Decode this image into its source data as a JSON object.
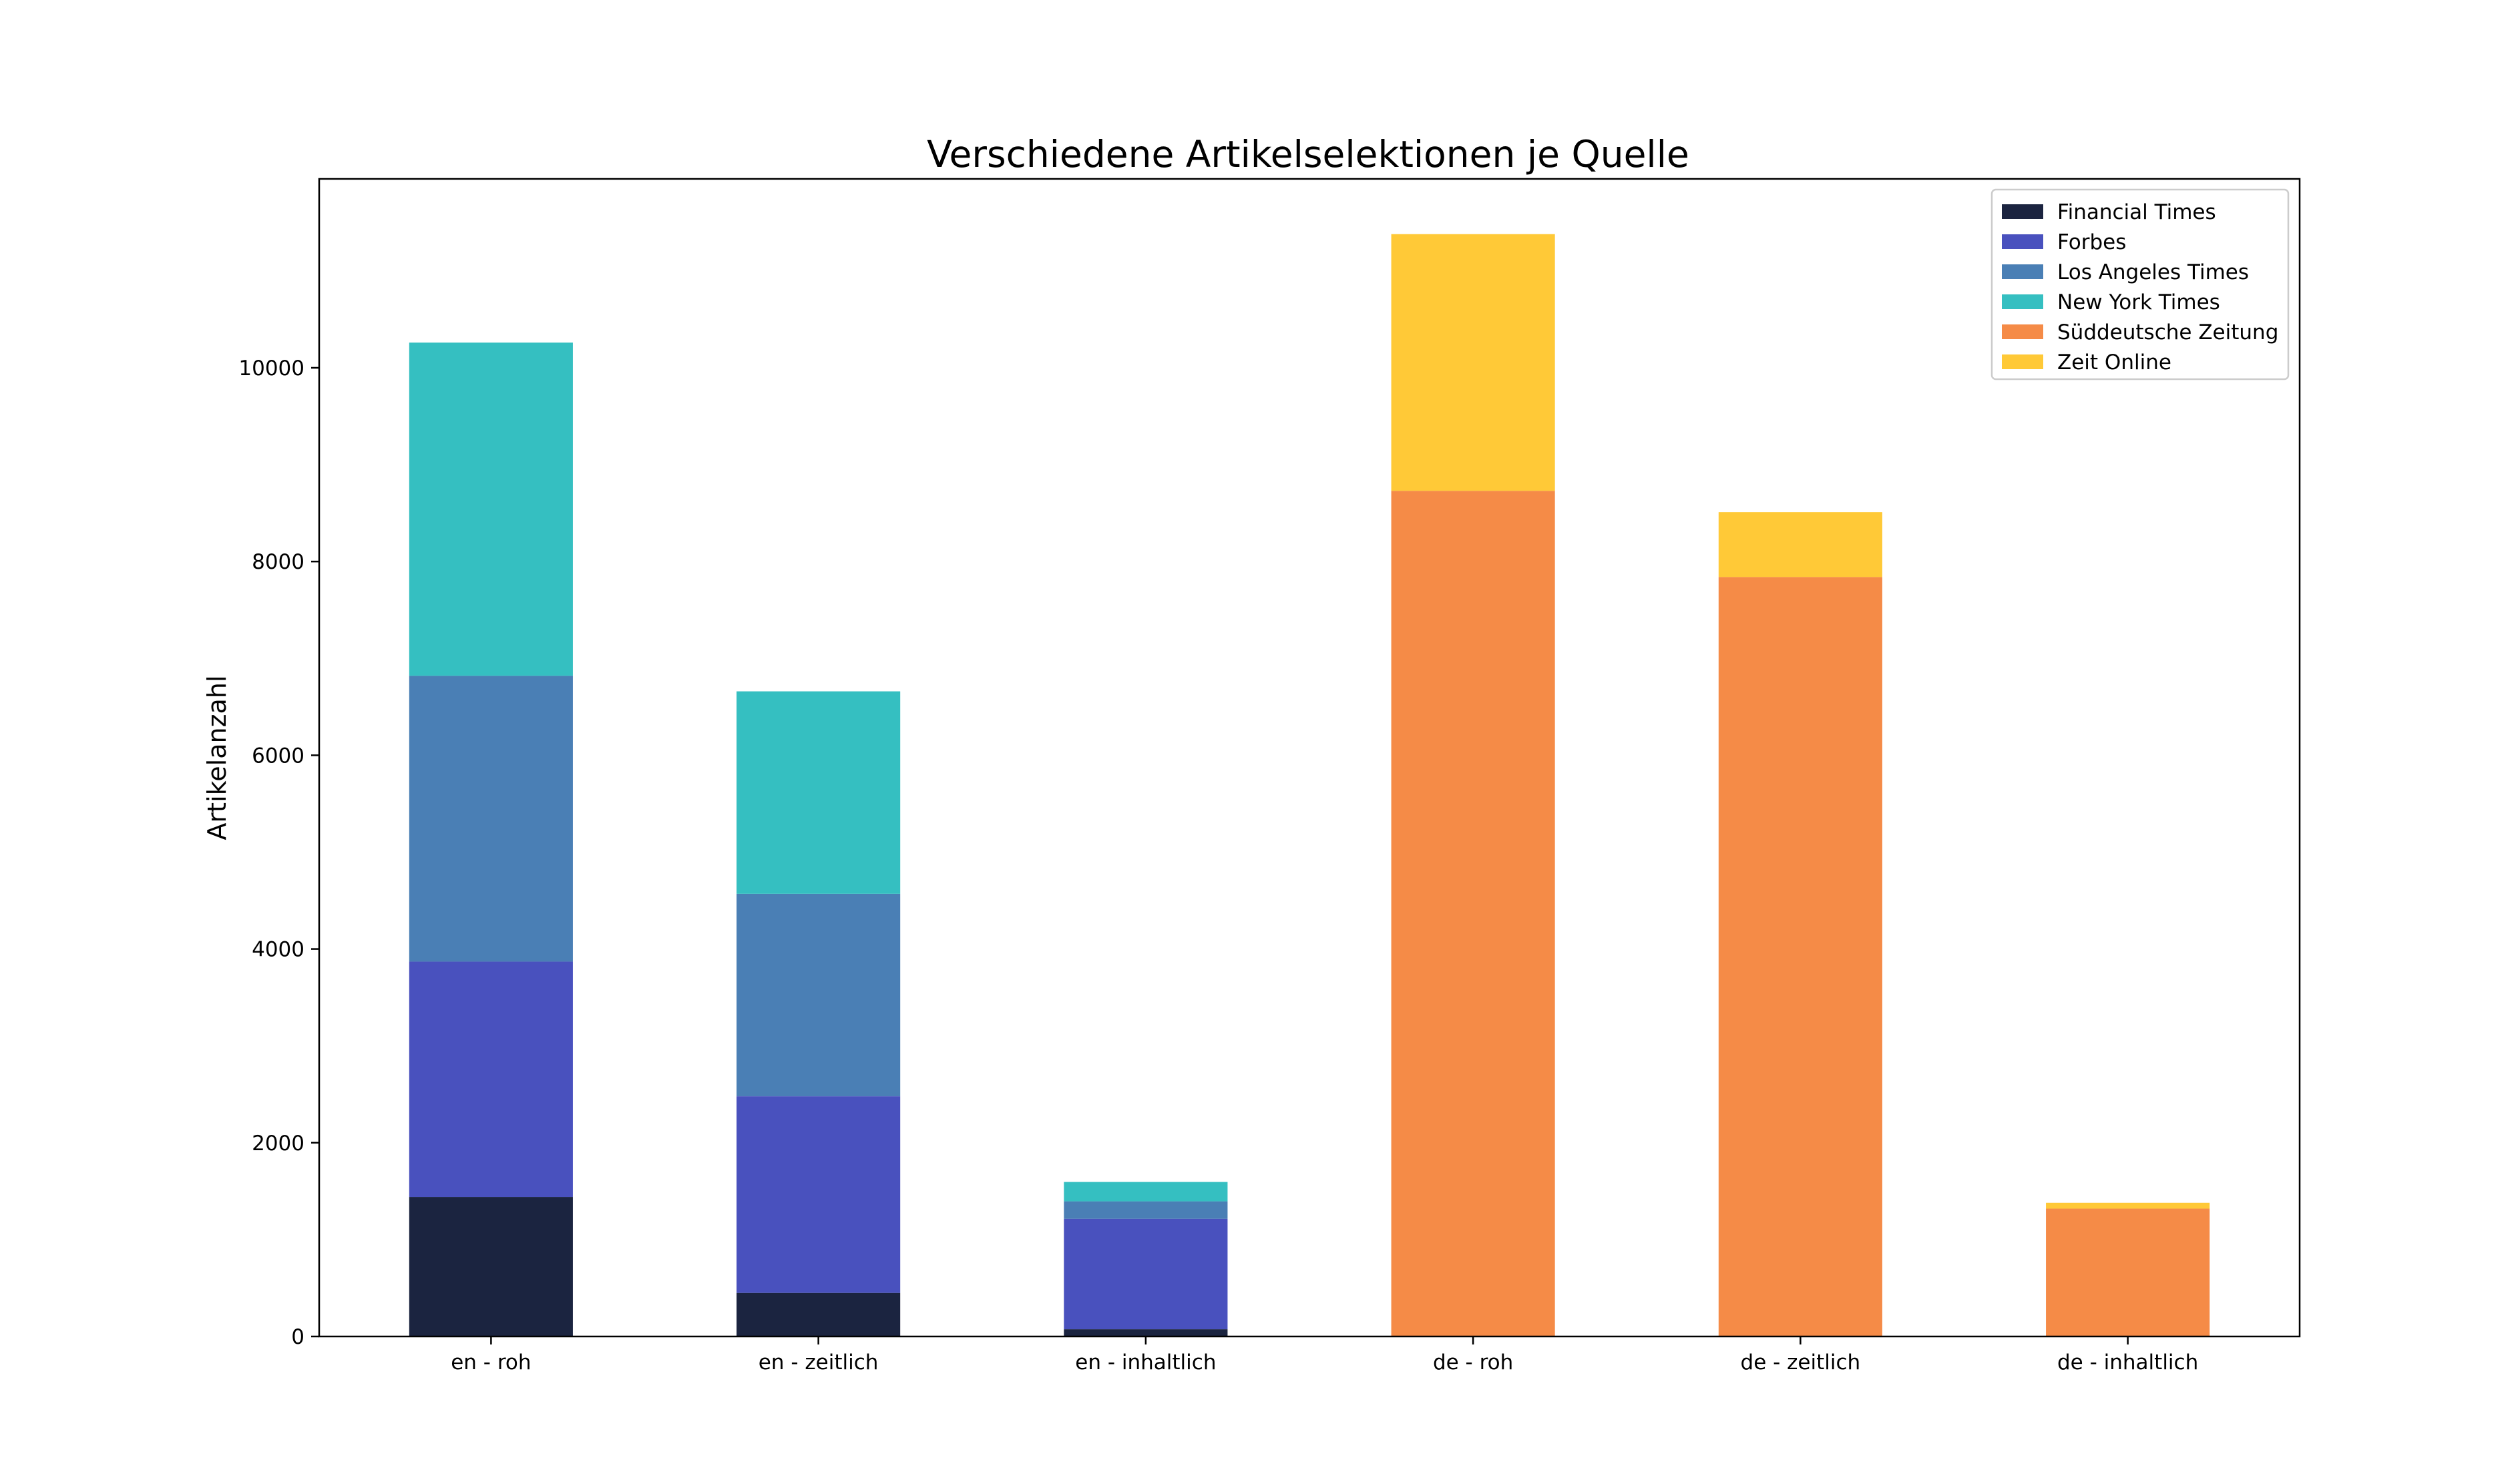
{
  "chart_data": {
    "type": "bar",
    "stacked": true,
    "title": "Verschiedene Artikelselektionen je Quelle",
    "xlabel": "",
    "ylabel": "Artikelanzahl",
    "ylim": [
      0,
      11950
    ],
    "yticks": [
      0,
      2000,
      4000,
      6000,
      8000,
      10000
    ],
    "ytick_labels": [
      "0",
      "2000",
      "4000",
      "6000",
      "8000",
      "10000"
    ],
    "grid": false,
    "legend_position": "top-right",
    "categories": [
      "en - roh",
      "en - zeitlich",
      "en - inhaltlich",
      "de - roh",
      "de - zeitlich",
      "de - inhaltlich"
    ],
    "series": [
      {
        "name": "Financial Times",
        "color": "#1b2440",
        "values": [
          1440,
          450,
          75,
          0,
          0,
          0
        ]
      },
      {
        "name": "Forbes",
        "color": "#4951be",
        "values": [
          2430,
          2030,
          1140,
          0,
          0,
          0
        ]
      },
      {
        "name": "Los Angeles Times",
        "color": "#4a7fb5",
        "values": [
          2950,
          2090,
          180,
          0,
          0,
          0
        ]
      },
      {
        "name": "New York Times",
        "color": "#35bfc1",
        "values": [
          3440,
          2090,
          200,
          0,
          0,
          0
        ]
      },
      {
        "name": "Süddeutsche Zeitung",
        "color": "#f58b47",
        "values": [
          0,
          0,
          0,
          8730,
          7840,
          1320
        ]
      },
      {
        "name": "Zeit Online",
        "color": "#ffc937",
        "values": [
          0,
          0,
          0,
          2650,
          670,
          60
        ]
      }
    ]
  }
}
